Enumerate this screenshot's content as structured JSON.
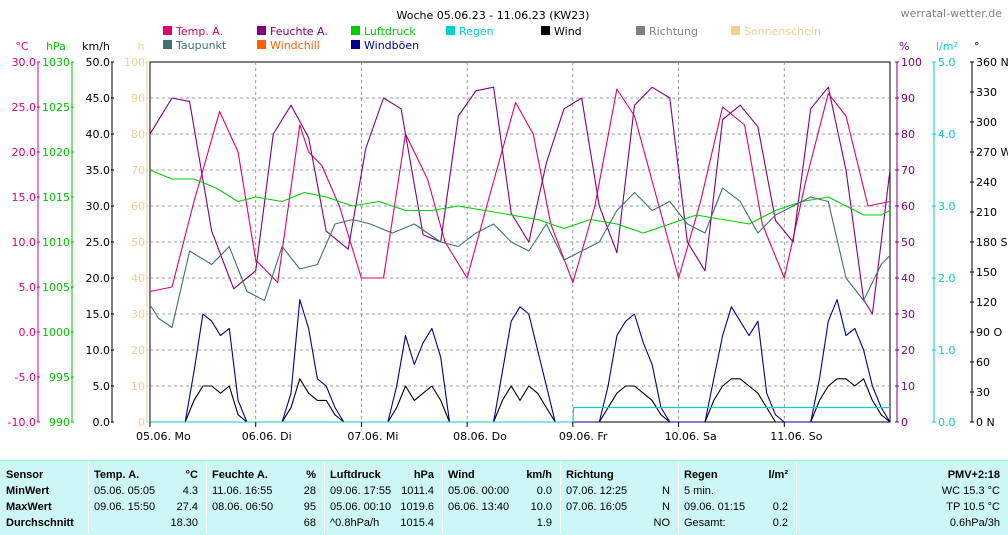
{
  "chart_data": {
    "type": "line",
    "title": "Woche 05.06.23 - 11.06.23 (KW23)",
    "site": "werratal-wetter.de",
    "x": {
      "start": "2023-06-05 00:00",
      "end": "2023-06-11 24:00",
      "tick_labels": [
        "05.06.  Mo",
        "06.06.  Di",
        "07.06.  Mi",
        "08.06.  Do",
        "09.06.  Fr",
        "10.06.  Sa",
        "11.06.  So"
      ]
    },
    "axes": [
      {
        "unit": "°C",
        "min": -10,
        "max": 30,
        "ticks": [
          "30.0",
          "25.0",
          "20.0",
          "15.0",
          "10.0",
          "5.0",
          "0.0",
          "-5.0",
          "-10.0"
        ],
        "color": "#e0006e"
      },
      {
        "unit": "hPa",
        "min": 990,
        "max": 1030,
        "ticks": [
          "1030",
          "1025",
          "1020",
          "1015",
          "1010",
          "1005",
          "1000",
          "995",
          "990"
        ],
        "color": "#00c000"
      },
      {
        "unit": "km/h",
        "min": 0,
        "max": 50,
        "ticks": [
          "50.0",
          "45.0",
          "40.0",
          "35.0",
          "30.0",
          "25.0",
          "20.0",
          "15.0",
          "10.0",
          "5.0",
          "0.0"
        ],
        "color": "#000000"
      },
      {
        "unit": "h",
        "min": 0,
        "max": 100,
        "ticks": [
          "100",
          "90",
          "80",
          "70",
          "60",
          "50",
          "40",
          "30",
          "20",
          "10",
          "0"
        ],
        "color": "#f0d090"
      },
      {
        "unit": "%",
        "min": 0,
        "max": 100,
        "ticks": [
          "100",
          "90",
          "80",
          "70",
          "60",
          "50",
          "40",
          "30",
          "20",
          "10",
          "0"
        ],
        "color": "#800080"
      },
      {
        "unit": "l/m²",
        "min": 0,
        "max": 5,
        "ticks": [
          "5.0",
          "4.0",
          "3.0",
          "2.0",
          "1.0",
          "0.0"
        ],
        "color": "#00d0d0"
      },
      {
        "unit": "°",
        "min": 0,
        "max": 360,
        "ticks": [
          "360 N",
          "330",
          "300",
          "270 W",
          "240",
          "210",
          "180 S",
          "150",
          "120",
          "90 O",
          "60",
          "30",
          "0 N"
        ],
        "color": "#000000"
      }
    ],
    "legend": [
      {
        "name": "Temp. A.",
        "color": "#e0006e"
      },
      {
        "name": "Feuchte A.",
        "color": "#800080"
      },
      {
        "name": "Luftdruck",
        "color": "#00d000"
      },
      {
        "name": "Regen",
        "color": "#00d0d0"
      },
      {
        "name": "Wind",
        "color": "#000000"
      },
      {
        "name": "Richtung",
        "color": "#808080"
      },
      {
        "name": "Sonnenschein",
        "color": "#f0d090"
      },
      {
        "name": "Taupunkt",
        "color": "#407070"
      },
      {
        "name": "Windchill",
        "color": "#ff6000"
      },
      {
        "name": "Windböen",
        "color": "#000090"
      }
    ],
    "series": [
      {
        "name": "Temp. A.",
        "axis": "°C",
        "color": "#e0006e",
        "x_hours": [
          0,
          5,
          10,
          15.8,
          20,
          24,
          29,
          34,
          36,
          39,
          43,
          48,
          53,
          58,
          63,
          67,
          72,
          77,
          83,
          87,
          91,
          96,
          101,
          106,
          110,
          115,
          120,
          125,
          130,
          135,
          139,
          144,
          149,
          154,
          158,
          163,
          168
        ],
        "values": [
          4.5,
          5.0,
          14.5,
          24.5,
          20.0,
          8.0,
          5.5,
          23.0,
          20.0,
          18.5,
          14.0,
          6.0,
          6.0,
          22.0,
          17.0,
          10.0,
          6.0,
          15.0,
          25.5,
          22.0,
          12.0,
          5.5,
          14.0,
          27.0,
          24.0,
          15.0,
          6.0,
          14.5,
          25.0,
          23.0,
          12.0,
          6.0,
          17.0,
          26.5,
          24.0,
          14.0,
          14.5
        ]
      },
      {
        "name": "Feuchte A.",
        "axis": "%",
        "color": "#800080",
        "x_hours": [
          0,
          5,
          9,
          14,
          19,
          24,
          28,
          32,
          36,
          40,
          45,
          49,
          53,
          57,
          62,
          66,
          70,
          74,
          78,
          82,
          86,
          90,
          94,
          98,
          102,
          106,
          110,
          114,
          118,
          122,
          126,
          130,
          134,
          138,
          142,
          146,
          150,
          154,
          158,
          162,
          164,
          168
        ],
        "values": [
          80,
          90,
          89,
          53,
          37,
          42,
          80,
          88,
          79,
          53,
          48,
          76,
          90,
          87,
          52,
          50,
          85,
          92,
          93,
          58,
          50,
          72,
          87,
          90,
          60,
          47,
          88,
          93,
          90,
          50,
          42,
          84,
          88,
          82,
          56,
          50,
          87,
          93,
          70,
          34,
          30,
          70
        ]
      },
      {
        "name": "Luftdruck",
        "axis": "hPa",
        "color": "#00d000",
        "x_hours": [
          0,
          5,
          10,
          15,
          20,
          24,
          30,
          35,
          40,
          46,
          52,
          58,
          64,
          70,
          76,
          82,
          88,
          94,
          100,
          106,
          112,
          118,
          124,
          130,
          136,
          142,
          148,
          154,
          158,
          162,
          166,
          168
        ],
        "values": [
          1018,
          1017,
          1017,
          1016,
          1014.5,
          1015,
          1014.5,
          1015.5,
          1015,
          1014,
          1014.5,
          1013.5,
          1013.5,
          1014,
          1013.5,
          1013,
          1012.5,
          1011.5,
          1012.5,
          1012,
          1011,
          1012,
          1013,
          1012.5,
          1012,
          1013.5,
          1014.5,
          1015,
          1014,
          1013,
          1013,
          1013.5
        ]
      },
      {
        "name": "Taupunkt",
        "axis": "°C",
        "color": "#407070",
        "x_hours": [
          0,
          2,
          5,
          9,
          14,
          18,
          22,
          26,
          30,
          34,
          38,
          42,
          46,
          50,
          55,
          60,
          66,
          70,
          74,
          78,
          82,
          86,
          90,
          94,
          98,
          102,
          106,
          110,
          114,
          118,
          122,
          126,
          130,
          134,
          138,
          142,
          146,
          150,
          154,
          158,
          162,
          166,
          168
        ],
        "values": [
          3,
          1.5,
          0.5,
          9,
          7.5,
          9.5,
          4.5,
          3.5,
          9.5,
          7.0,
          7.5,
          12,
          12.5,
          12,
          11,
          12,
          10,
          9.5,
          11,
          12,
          10,
          9,
          12,
          8,
          9,
          10,
          13.5,
          15.5,
          13.5,
          14.5,
          12,
          11.0,
          16.0,
          14.5,
          11,
          13.0,
          14.0,
          15.0,
          14.5,
          6,
          3.5,
          7.5,
          8.5
        ]
      },
      {
        "name": "Wind",
        "axis": "km/h",
        "color": "#000000",
        "x_hours": [
          0,
          8,
          10,
          12,
          14,
          16,
          18,
          20,
          22,
          24,
          30,
          32,
          34,
          36,
          38,
          40,
          42,
          44,
          46,
          48,
          54,
          56,
          58,
          60,
          62,
          64,
          66,
          68,
          70,
          72,
          78,
          80,
          82,
          84,
          86,
          88,
          90,
          92,
          94,
          96,
          102,
          104,
          106,
          108,
          110,
          112,
          114,
          116,
          118,
          120,
          126,
          128,
          130,
          132,
          134,
          136,
          138,
          140,
          142,
          144,
          150,
          152,
          154,
          156,
          158,
          160,
          162,
          164,
          166,
          168
        ],
        "values": [
          0,
          0,
          3,
          5,
          5,
          4,
          5,
          1,
          0,
          0,
          0,
          2,
          6,
          4,
          3,
          3,
          1,
          0,
          0,
          0,
          0,
          2,
          5,
          3,
          4,
          5,
          3,
          0,
          0,
          0,
          0,
          3,
          5,
          3,
          5,
          4,
          2,
          0,
          0,
          0,
          0,
          2,
          4,
          5,
          5,
          4,
          3,
          1,
          0,
          0,
          0,
          3,
          5,
          6,
          6,
          5,
          4,
          2,
          0,
          0,
          0,
          3,
          5,
          6,
          6,
          5,
          6,
          3,
          1,
          0
        ]
      },
      {
        "name": "Windböen",
        "axis": "km/h",
        "color": "#000090",
        "x_hours": [
          0,
          8,
          10,
          12,
          14,
          16,
          18,
          20,
          22,
          24,
          30,
          32,
          34,
          36,
          38,
          40,
          42,
          44,
          46,
          48,
          54,
          56,
          58,
          60,
          62,
          64,
          66,
          68,
          70,
          72,
          78,
          80,
          82,
          84,
          86,
          88,
          90,
          92,
          94,
          96,
          102,
          104,
          106,
          108,
          110,
          112,
          114,
          116,
          118,
          120,
          126,
          128,
          130,
          132,
          134,
          136,
          138,
          140,
          142,
          144,
          150,
          152,
          154,
          156,
          158,
          160,
          162,
          164,
          166,
          168
        ],
        "values": [
          0,
          0,
          7,
          15,
          14,
          12,
          13,
          3,
          0,
          0,
          0,
          4,
          17,
          13,
          6,
          5,
          2,
          0,
          0,
          0,
          0,
          5,
          12,
          8,
          11,
          13,
          9,
          0,
          0,
          0,
          0,
          7,
          14,
          16,
          15,
          10,
          5,
          0,
          0,
          0,
          0,
          5,
          12,
          14,
          15,
          11,
          8,
          2,
          0,
          0,
          0,
          6,
          12,
          16,
          14,
          12,
          14,
          4,
          1,
          0,
          0,
          6,
          14,
          17,
          12,
          13,
          10,
          5,
          2,
          0
        ]
      },
      {
        "name": "Regen",
        "axis": "l/m²",
        "color": "#00d0d0",
        "x_hours": [
          0,
          96,
          96.2,
          168
        ],
        "values": [
          0,
          0,
          0.2,
          0.2
        ]
      }
    ]
  },
  "stats": {
    "headers": [
      "Sensor",
      "Temp. A.",
      "°C",
      "Feuchte A.",
      "%",
      "Luftdruck",
      "hPa",
      "Wind",
      "km/h",
      "Richtung",
      "Regen",
      "l/m²",
      "PMV+2:18"
    ],
    "row_labels": [
      "MinWert",
      "MaxWert",
      "Durchschnitt"
    ],
    "temp": [
      [
        "05.06.  05:05",
        "4.3"
      ],
      [
        "09.06.  15:50",
        "27.4"
      ],
      [
        "",
        "18.30"
      ]
    ],
    "humidity": [
      [
        "11.06.  16:55",
        "28"
      ],
      [
        "08.06.  06:50",
        "95"
      ],
      [
        "",
        "68"
      ]
    ],
    "pressure": [
      [
        "09.06.  17:55",
        "1011.4"
      ],
      [
        "05.06.  00:10",
        "1019.6"
      ],
      [
        "^0.8hPa/h",
        "1015.4"
      ]
    ],
    "wind": [
      [
        "05.06.  00:00",
        "0.0"
      ],
      [
        "06.06.  13:40",
        "10.0"
      ],
      [
        "",
        "1.9"
      ]
    ],
    "direction": [
      [
        "07.06.  12:25",
        "N"
      ],
      [
        "07.06.  16:05",
        "N"
      ],
      [
        "",
        "NO"
      ]
    ],
    "rain": [
      [
        "5 min.",
        ""
      ],
      [
        "09.06.  01:15",
        "0.2"
      ],
      [
        "Gesamt:",
        "0.2"
      ]
    ],
    "pmv": [
      "WC 15.3 °C",
      "TP 10.5 °C",
      "0.6hPa/3h"
    ]
  }
}
